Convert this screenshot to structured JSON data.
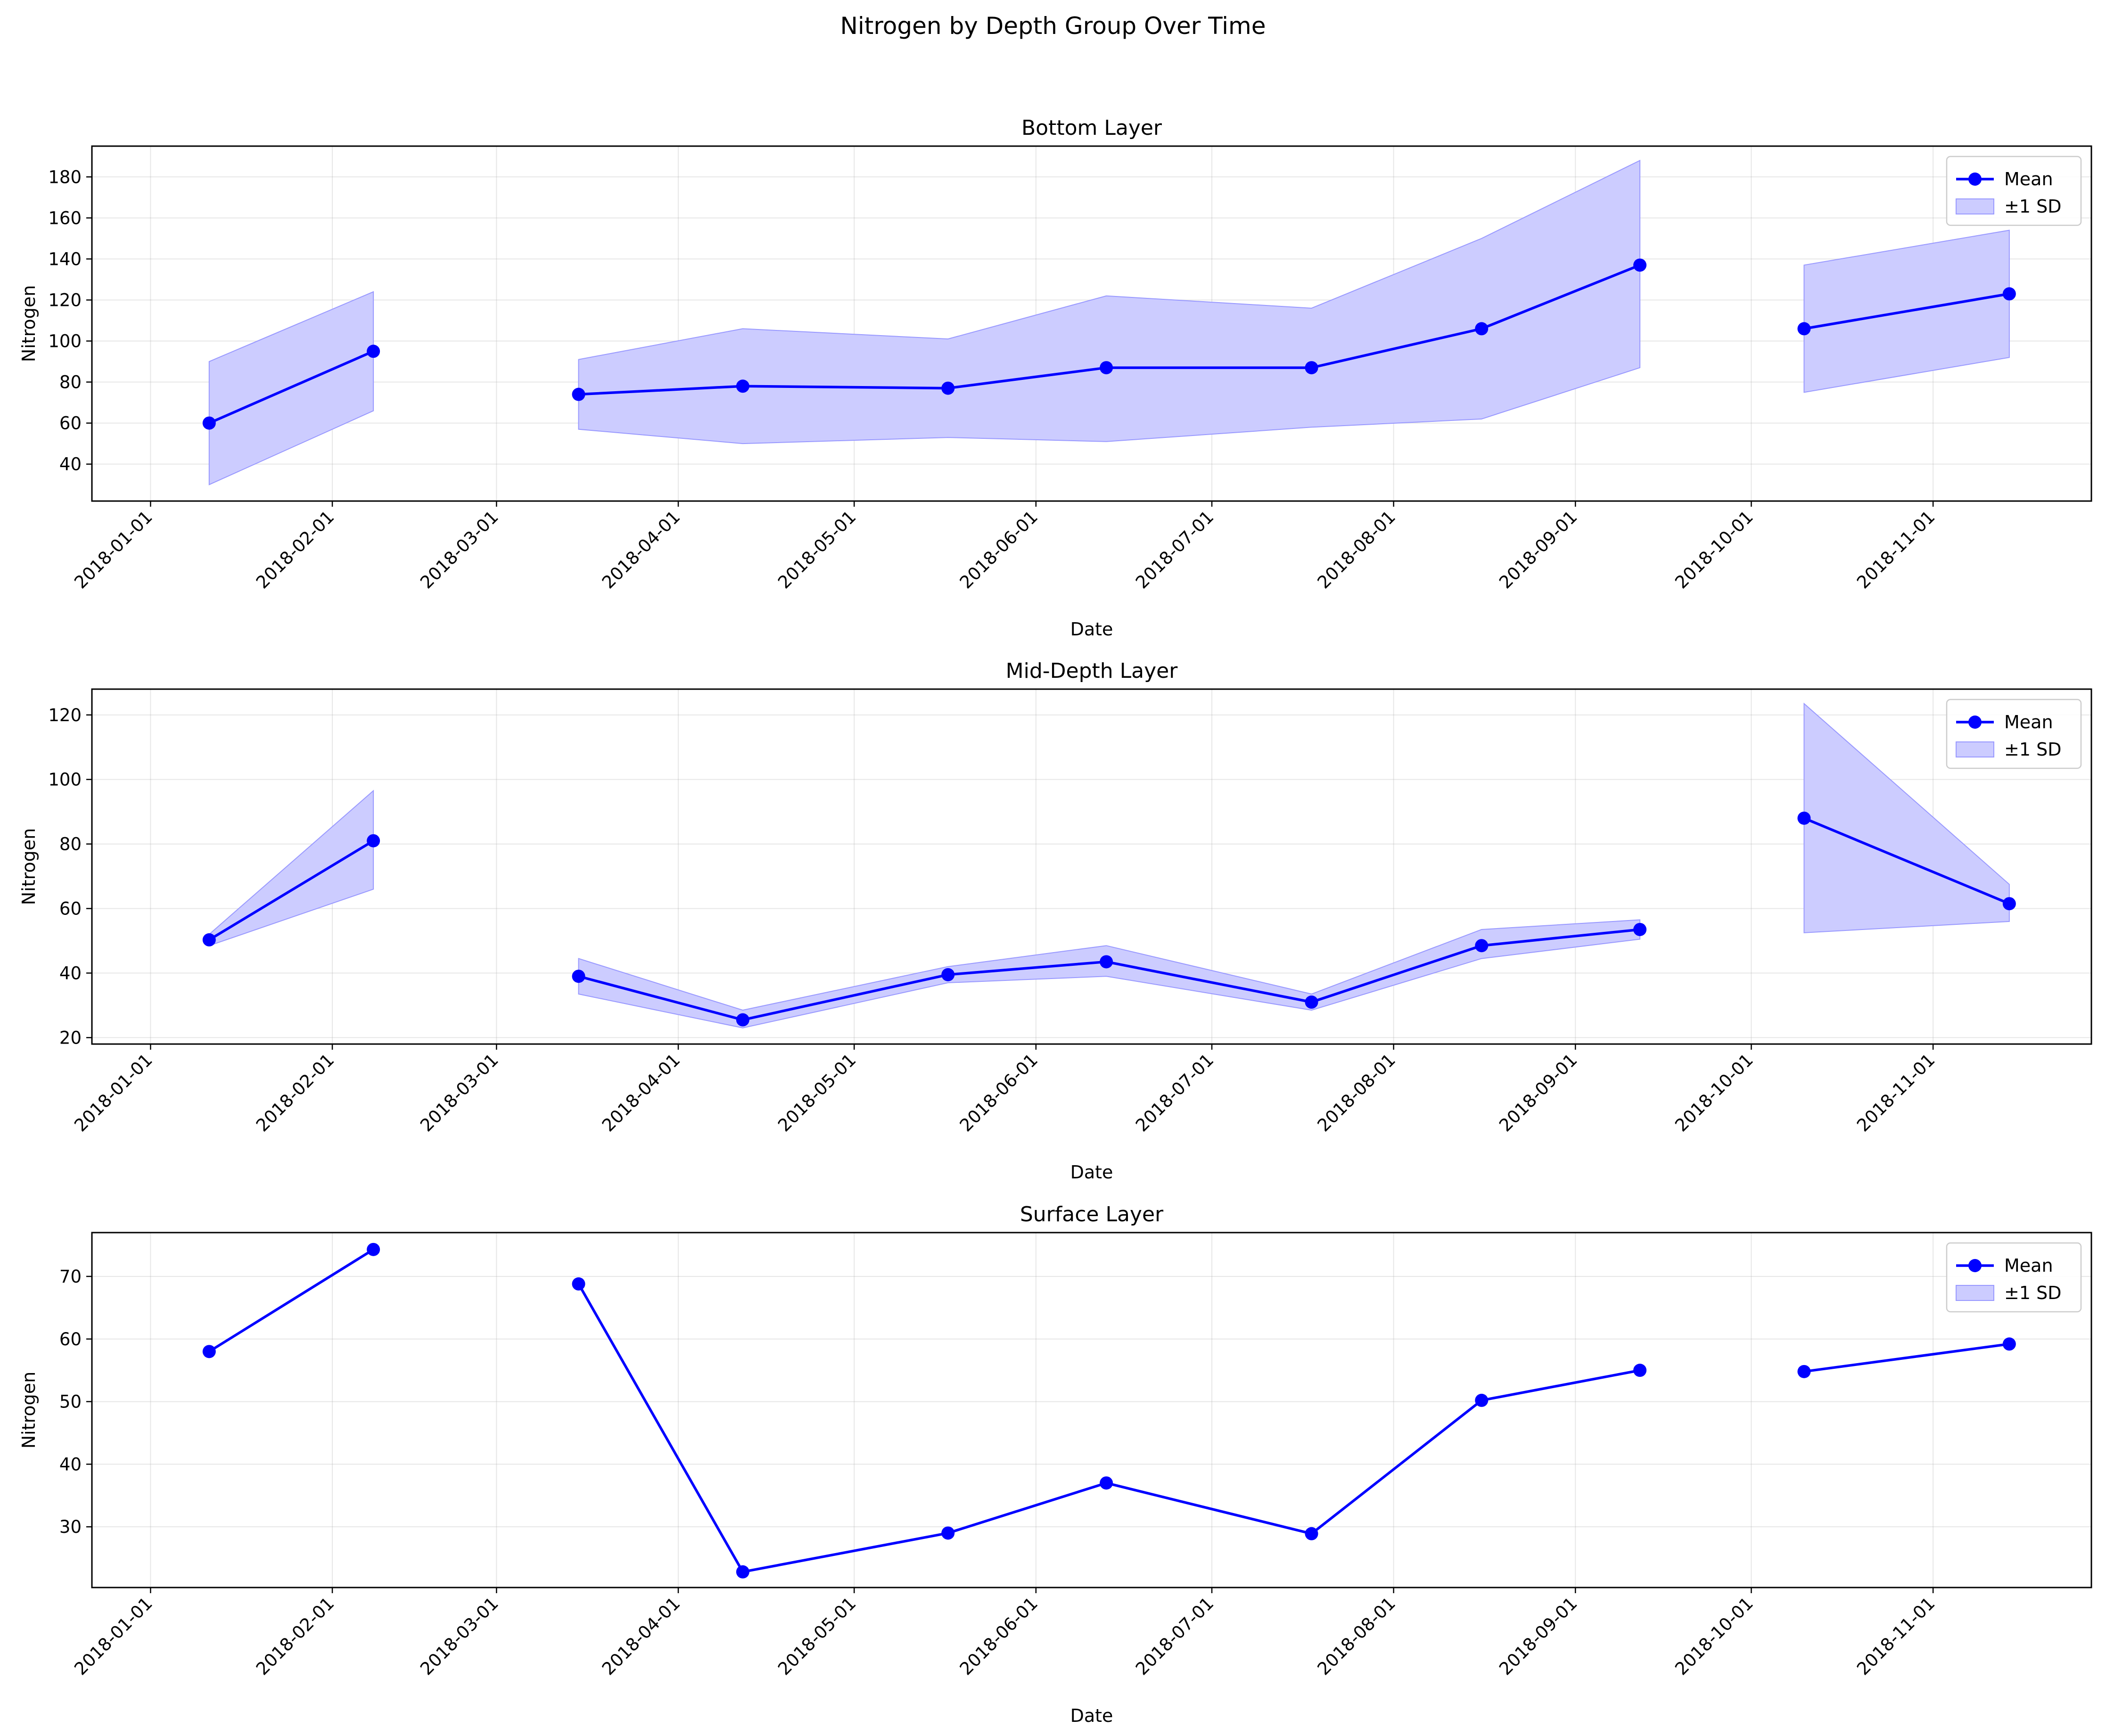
{
  "figure": {
    "title": "Nitrogen by Depth Group Over Time"
  },
  "chart_data": [
    {
      "type": "line",
      "title": "Bottom Layer",
      "xlabel": "Date",
      "ylabel": "Nitrogen",
      "xlim": [
        "2017-12-22",
        "2018-11-28"
      ],
      "ylim": [
        22,
        195
      ],
      "yticks": [
        40,
        60,
        80,
        100,
        120,
        140,
        160,
        180
      ],
      "xticks": [
        "2018-01-01",
        "2018-02-01",
        "2018-03-01",
        "2018-04-01",
        "2018-05-01",
        "2018-06-01",
        "2018-07-01",
        "2018-08-01",
        "2018-09-01",
        "2018-10-01",
        "2018-11-01"
      ],
      "grid": true,
      "legend": {
        "placement": "upper-right",
        "entries": [
          "Mean",
          "±1 SD"
        ]
      },
      "series_color": "#0000ff",
      "band_color": "#ccccff",
      "segments": [
        {
          "points": [
            {
              "x": "2018-01-11",
              "mean": 60,
              "lower": 30,
              "upper": 90
            },
            {
              "x": "2018-02-08",
              "mean": 95,
              "lower": 66,
              "upper": 124
            }
          ]
        },
        {
          "points": [
            {
              "x": "2018-03-15",
              "mean": 74,
              "lower": 57,
              "upper": 91
            },
            {
              "x": "2018-04-12",
              "mean": 78,
              "lower": 50,
              "upper": 106
            },
            {
              "x": "2018-05-17",
              "mean": 77,
              "lower": 53,
              "upper": 101
            },
            {
              "x": "2018-06-13",
              "mean": 87,
              "lower": 51,
              "upper": 122
            },
            {
              "x": "2018-07-18",
              "mean": 87,
              "lower": 58,
              "upper": 116
            },
            {
              "x": "2018-08-16",
              "mean": 106,
              "lower": 62,
              "upper": 150
            },
            {
              "x": "2018-09-12",
              "mean": 137,
              "lower": 87,
              "upper": 188
            }
          ]
        },
        {
          "points": [
            {
              "x": "2018-10-10",
              "mean": 106,
              "lower": 75,
              "upper": 137
            },
            {
              "x": "2018-11-14",
              "mean": 123,
              "lower": 92,
              "upper": 154
            }
          ]
        }
      ]
    },
    {
      "type": "line",
      "title": "Mid-Depth Layer",
      "xlabel": "Date",
      "ylabel": "Nitrogen",
      "xlim": [
        "2017-12-22",
        "2018-11-28"
      ],
      "ylim": [
        18,
        128
      ],
      "yticks": [
        20,
        40,
        60,
        80,
        100,
        120
      ],
      "xticks": [
        "2018-01-01",
        "2018-02-01",
        "2018-03-01",
        "2018-04-01",
        "2018-05-01",
        "2018-06-01",
        "2018-07-01",
        "2018-08-01",
        "2018-09-01",
        "2018-10-01",
        "2018-11-01"
      ],
      "grid": true,
      "legend": {
        "placement": "upper-right",
        "entries": [
          "Mean",
          "±1 SD"
        ]
      },
      "series_color": "#0000ff",
      "band_color": "#ccccff",
      "segments": [
        {
          "points": [
            {
              "x": "2018-01-11",
              "mean": 50.3,
              "lower": 48.5,
              "upper": 52
            },
            {
              "x": "2018-02-08",
              "mean": 81,
              "lower": 66,
              "upper": 96.5
            }
          ]
        },
        {
          "points": [
            {
              "x": "2018-03-15",
              "mean": 39,
              "lower": 33.5,
              "upper": 44.5
            },
            {
              "x": "2018-04-12",
              "mean": 25.5,
              "lower": 23,
              "upper": 28.5
            },
            {
              "x": "2018-05-17",
              "mean": 39.5,
              "lower": 37,
              "upper": 42
            },
            {
              "x": "2018-06-13",
              "mean": 43.5,
              "lower": 39,
              "upper": 48.5
            },
            {
              "x": "2018-07-18",
              "mean": 31,
              "lower": 28.5,
              "upper": 33.5
            },
            {
              "x": "2018-08-16",
              "mean": 48.5,
              "lower": 44.5,
              "upper": 53.5
            },
            {
              "x": "2018-09-12",
              "mean": 53.5,
              "lower": 50.5,
              "upper": 56.5
            }
          ]
        },
        {
          "points": [
            {
              "x": "2018-10-10",
              "mean": 88,
              "lower": 52.5,
              "upper": 123.5
            },
            {
              "x": "2018-11-14",
              "mean": 61.5,
              "lower": 56,
              "upper": 67.5
            }
          ]
        }
      ]
    },
    {
      "type": "line",
      "title": "Surface Layer",
      "xlabel": "Date",
      "ylabel": "Nitrogen",
      "xlim": [
        "2017-12-22",
        "2018-11-28"
      ],
      "ylim": [
        20.3,
        77
      ],
      "yticks": [
        30,
        40,
        50,
        60,
        70
      ],
      "xticks": [
        "2018-01-01",
        "2018-02-01",
        "2018-03-01",
        "2018-04-01",
        "2018-05-01",
        "2018-06-01",
        "2018-07-01",
        "2018-08-01",
        "2018-09-01",
        "2018-10-01",
        "2018-11-01"
      ],
      "grid": true,
      "legend": {
        "placement": "upper-right",
        "entries": [
          "Mean",
          "±1 SD"
        ]
      },
      "series_color": "#0000ff",
      "band_color": "#ccccff",
      "segments": [
        {
          "points": [
            {
              "x": "2018-01-11",
              "mean": 58
            },
            {
              "x": "2018-02-08",
              "mean": 74.3
            }
          ]
        },
        {
          "points": [
            {
              "x": "2018-03-15",
              "mean": 68.8
            },
            {
              "x": "2018-04-12",
              "mean": 22.8
            },
            {
              "x": "2018-05-17",
              "mean": 29
            },
            {
              "x": "2018-06-13",
              "mean": 37
            },
            {
              "x": "2018-07-18",
              "mean": 28.9
            },
            {
              "x": "2018-08-16",
              "mean": 50.2
            },
            {
              "x": "2018-09-12",
              "mean": 55
            }
          ]
        },
        {
          "points": [
            {
              "x": "2018-10-10",
              "mean": 54.8
            },
            {
              "x": "2018-11-14",
              "mean": 59.2
            }
          ]
        }
      ]
    }
  ]
}
